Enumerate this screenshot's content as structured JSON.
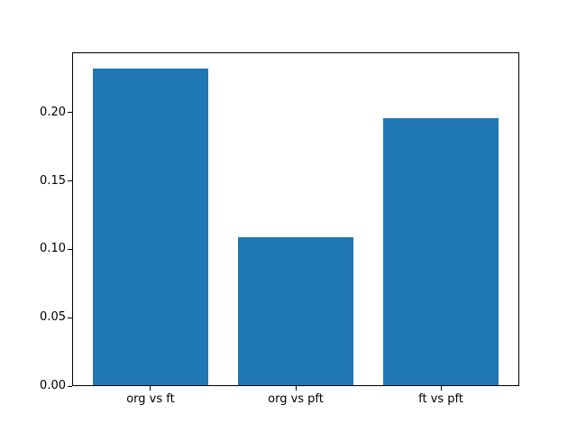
{
  "figure": {
    "background": "#ffffff"
  },
  "chart_data": {
    "type": "bar",
    "categories": [
      "org vs ft",
      "org vs pft",
      "ft vs pft"
    ],
    "values": [
      0.232,
      0.109,
      0.196
    ],
    "title": "",
    "xlabel": "",
    "ylabel": "",
    "ylim": [
      0,
      0.244
    ],
    "xlim": [
      -0.54,
      2.54
    ],
    "bar_width": 0.8,
    "yticks": [
      0.0,
      0.05,
      0.1,
      0.15,
      0.2
    ],
    "ytick_labels": [
      "0.00",
      "0.05",
      "0.10",
      "0.15",
      "0.20"
    ],
    "bar_color": "#1f77b4",
    "axis_color": "#000000",
    "grid": false,
    "legend": false
  }
}
